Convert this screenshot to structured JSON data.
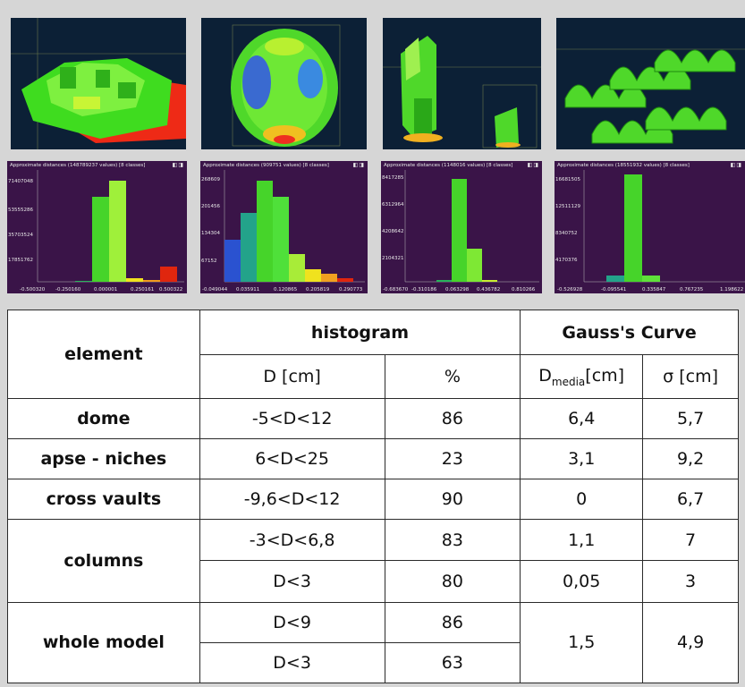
{
  "histograms": [
    {
      "title": "Approximate distances (148789237 values) [8 classes]",
      "yticks": [
        "71407048",
        "53555286",
        "35703524",
        "17851762"
      ],
      "xticks": [
        "-0.500320",
        "-0.250160",
        "0.000001",
        "0.250161",
        "0.500322"
      ]
    },
    {
      "title": "Approximate distances (909751 values) [8 classes]",
      "yticks": [
        "268609",
        "201456",
        "134304",
        "67152"
      ],
      "xticks": [
        "-0.049044",
        "0.035911",
        "0.120865",
        "0.205819",
        "0.290773"
      ]
    },
    {
      "title": "Approximate distances (1148016 values) [8 classes]",
      "yticks": [
        "8417285",
        "6312964",
        "4208642",
        "2104321"
      ],
      "xticks": [
        "-0.683670",
        "-0.310186",
        "0.063298",
        "0.436782",
        "0.810266"
      ]
    },
    {
      "title": "Approximate distances (18551932 values) [8 classes]",
      "yticks": [
        "16681505",
        "12511129",
        "8340752",
        "4170376"
      ],
      "xticks": [
        "-0.526928",
        "-0.095541",
        "0.335847",
        "0.767235",
        "1.198622"
      ]
    }
  ],
  "table": {
    "h_element": "element",
    "h_histogram": "histogram",
    "h_gauss": "Gauss's Curve",
    "h_d": "D [cm]",
    "h_pct": "%",
    "h_dmedia_main": "D",
    "h_dmedia_sub": "media",
    "h_dmedia_unit": "[cm]",
    "h_sigma": "σ [cm]",
    "dome": {
      "name": "dome",
      "range": "-5<D<12",
      "pct": "86",
      "dmedia": "6,4",
      "sigma": "5,7"
    },
    "apse": {
      "name": "apse - niches",
      "range": "6<D<25",
      "pct": "23",
      "dmedia": "3,1",
      "sigma": "9,2"
    },
    "vaults": {
      "name": "cross vaults",
      "range": "-9,6<D<12",
      "pct": "90",
      "dmedia": "0",
      "sigma": "6,7"
    },
    "columns": {
      "name": "columns",
      "range1": "-3<D<6,8",
      "pct1": "83",
      "dmedia1": "1,1",
      "sigma1": "7",
      "range2": "D<3",
      "pct2": "80",
      "dmedia2": "0,05",
      "sigma2": "3"
    },
    "whole": {
      "name": "whole model",
      "range1": "D<9",
      "pct1": "86",
      "range2": "D<3",
      "pct2": "63",
      "dmedia": "1,5",
      "sigma": "4,9"
    }
  }
}
